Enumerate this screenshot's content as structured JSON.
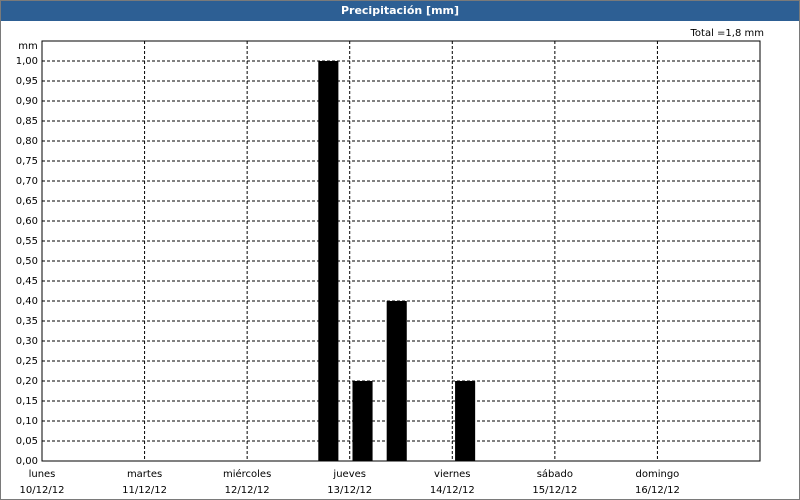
{
  "window_title": "Precipitación [mm]",
  "chart_data": {
    "type": "bar",
    "total_label": "Total =1,8 mm",
    "y_unit": "mm",
    "x": [
      67,
      75,
      83,
      99
    ],
    "values": [
      1.0,
      0.2,
      0.4,
      0.2
    ],
    "color": "#000000",
    "xlim": [
      0,
      168
    ],
    "xticks": [
      {
        "value": 0,
        "label": "lunes",
        "date": "10/12/12"
      },
      {
        "value": 24,
        "label": "martes",
        "date": "11/12/12"
      },
      {
        "value": 48,
        "label": "miércoles",
        "date": "12/12/12"
      },
      {
        "value": 72,
        "label": "jueves",
        "date": "13/12/12"
      },
      {
        "value": 96,
        "label": "viernes",
        "date": "14/12/12"
      },
      {
        "value": 120,
        "label": "sábado",
        "date": "15/12/12"
      },
      {
        "value": 144,
        "label": "domingo",
        "date": "16/12/12"
      }
    ],
    "ylim": [
      0,
      1.05
    ],
    "yticks": [
      {
        "value": 0,
        "label": "0,00"
      },
      {
        "value": 0.05,
        "label": "0,05"
      },
      {
        "value": 0.1,
        "label": "0,10"
      },
      {
        "value": 0.15,
        "label": "0,15"
      },
      {
        "value": 0.2,
        "label": "0,20"
      },
      {
        "value": 0.25,
        "label": "0,25"
      },
      {
        "value": 0.3,
        "label": "0,30"
      },
      {
        "value": 0.35,
        "label": "0,35"
      },
      {
        "value": 0.4,
        "label": "0,40"
      },
      {
        "value": 0.45,
        "label": "0,45"
      },
      {
        "value": 0.5,
        "label": "0,50"
      },
      {
        "value": 0.55,
        "label": "0,55"
      },
      {
        "value": 0.6,
        "label": "0,60"
      },
      {
        "value": 0.65,
        "label": "0,65"
      },
      {
        "value": 0.7,
        "label": "0,70"
      },
      {
        "value": 0.75,
        "label": "0,75"
      },
      {
        "value": 0.8,
        "label": "0,80"
      },
      {
        "value": 0.85,
        "label": "0,85"
      },
      {
        "value": 0.9,
        "label": "0,90"
      },
      {
        "value": 0.95,
        "label": "0,95"
      },
      {
        "value": 1.0,
        "label": "1,00"
      }
    ],
    "grid": true
  }
}
